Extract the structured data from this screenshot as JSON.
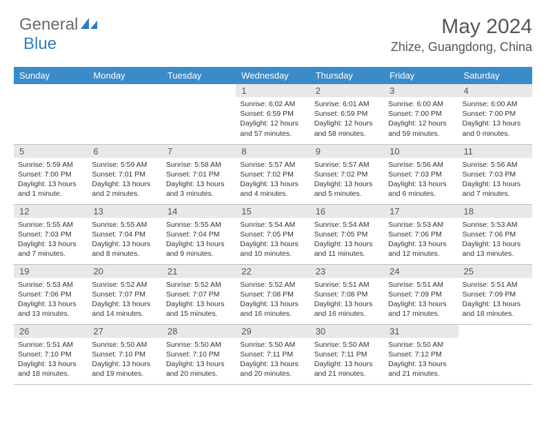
{
  "brand": {
    "part1": "General",
    "part2": "Blue"
  },
  "title": "May 2024",
  "location": "Zhize, Guangdong, China",
  "colors": {
    "header_bg": "#3b8bc9",
    "daynum_bg": "#e8e8e8",
    "border": "#c0c0c0",
    "brand_gray": "#6b6b6b",
    "brand_blue": "#2e7bbf"
  },
  "weekdays": [
    "Sunday",
    "Monday",
    "Tuesday",
    "Wednesday",
    "Thursday",
    "Friday",
    "Saturday"
  ],
  "weeks": [
    [
      null,
      null,
      null,
      {
        "n": "1",
        "sr": "6:02 AM",
        "ss": "6:59 PM",
        "dl": "12 hours and 57 minutes."
      },
      {
        "n": "2",
        "sr": "6:01 AM",
        "ss": "6:59 PM",
        "dl": "12 hours and 58 minutes."
      },
      {
        "n": "3",
        "sr": "6:00 AM",
        "ss": "7:00 PM",
        "dl": "12 hours and 59 minutes."
      },
      {
        "n": "4",
        "sr": "6:00 AM",
        "ss": "7:00 PM",
        "dl": "13 hours and 0 minutes."
      }
    ],
    [
      {
        "n": "5",
        "sr": "5:59 AM",
        "ss": "7:00 PM",
        "dl": "13 hours and 1 minute."
      },
      {
        "n": "6",
        "sr": "5:59 AM",
        "ss": "7:01 PM",
        "dl": "13 hours and 2 minutes."
      },
      {
        "n": "7",
        "sr": "5:58 AM",
        "ss": "7:01 PM",
        "dl": "13 hours and 3 minutes."
      },
      {
        "n": "8",
        "sr": "5:57 AM",
        "ss": "7:02 PM",
        "dl": "13 hours and 4 minutes."
      },
      {
        "n": "9",
        "sr": "5:57 AM",
        "ss": "7:02 PM",
        "dl": "13 hours and 5 minutes."
      },
      {
        "n": "10",
        "sr": "5:56 AM",
        "ss": "7:03 PM",
        "dl": "13 hours and 6 minutes."
      },
      {
        "n": "11",
        "sr": "5:56 AM",
        "ss": "7:03 PM",
        "dl": "13 hours and 7 minutes."
      }
    ],
    [
      {
        "n": "12",
        "sr": "5:55 AM",
        "ss": "7:03 PM",
        "dl": "13 hours and 7 minutes."
      },
      {
        "n": "13",
        "sr": "5:55 AM",
        "ss": "7:04 PM",
        "dl": "13 hours and 8 minutes."
      },
      {
        "n": "14",
        "sr": "5:55 AM",
        "ss": "7:04 PM",
        "dl": "13 hours and 9 minutes."
      },
      {
        "n": "15",
        "sr": "5:54 AM",
        "ss": "7:05 PM",
        "dl": "13 hours and 10 minutes."
      },
      {
        "n": "16",
        "sr": "5:54 AM",
        "ss": "7:05 PM",
        "dl": "13 hours and 11 minutes."
      },
      {
        "n": "17",
        "sr": "5:53 AM",
        "ss": "7:06 PM",
        "dl": "13 hours and 12 minutes."
      },
      {
        "n": "18",
        "sr": "5:53 AM",
        "ss": "7:06 PM",
        "dl": "13 hours and 13 minutes."
      }
    ],
    [
      {
        "n": "19",
        "sr": "5:53 AM",
        "ss": "7:06 PM",
        "dl": "13 hours and 13 minutes."
      },
      {
        "n": "20",
        "sr": "5:52 AM",
        "ss": "7:07 PM",
        "dl": "13 hours and 14 minutes."
      },
      {
        "n": "21",
        "sr": "5:52 AM",
        "ss": "7:07 PM",
        "dl": "13 hours and 15 minutes."
      },
      {
        "n": "22",
        "sr": "5:52 AM",
        "ss": "7:08 PM",
        "dl": "13 hours and 16 minutes."
      },
      {
        "n": "23",
        "sr": "5:51 AM",
        "ss": "7:08 PM",
        "dl": "13 hours and 16 minutes."
      },
      {
        "n": "24",
        "sr": "5:51 AM",
        "ss": "7:09 PM",
        "dl": "13 hours and 17 minutes."
      },
      {
        "n": "25",
        "sr": "5:51 AM",
        "ss": "7:09 PM",
        "dl": "13 hours and 18 minutes."
      }
    ],
    [
      {
        "n": "26",
        "sr": "5:51 AM",
        "ss": "7:10 PM",
        "dl": "13 hours and 18 minutes."
      },
      {
        "n": "27",
        "sr": "5:50 AM",
        "ss": "7:10 PM",
        "dl": "13 hours and 19 minutes."
      },
      {
        "n": "28",
        "sr": "5:50 AM",
        "ss": "7:10 PM",
        "dl": "13 hours and 20 minutes."
      },
      {
        "n": "29",
        "sr": "5:50 AM",
        "ss": "7:11 PM",
        "dl": "13 hours and 20 minutes."
      },
      {
        "n": "30",
        "sr": "5:50 AM",
        "ss": "7:11 PM",
        "dl": "13 hours and 21 minutes."
      },
      {
        "n": "31",
        "sr": "5:50 AM",
        "ss": "7:12 PM",
        "dl": "13 hours and 21 minutes."
      },
      null
    ]
  ],
  "labels": {
    "sunrise": "Sunrise:",
    "sunset": "Sunset:",
    "daylight": "Daylight:"
  }
}
